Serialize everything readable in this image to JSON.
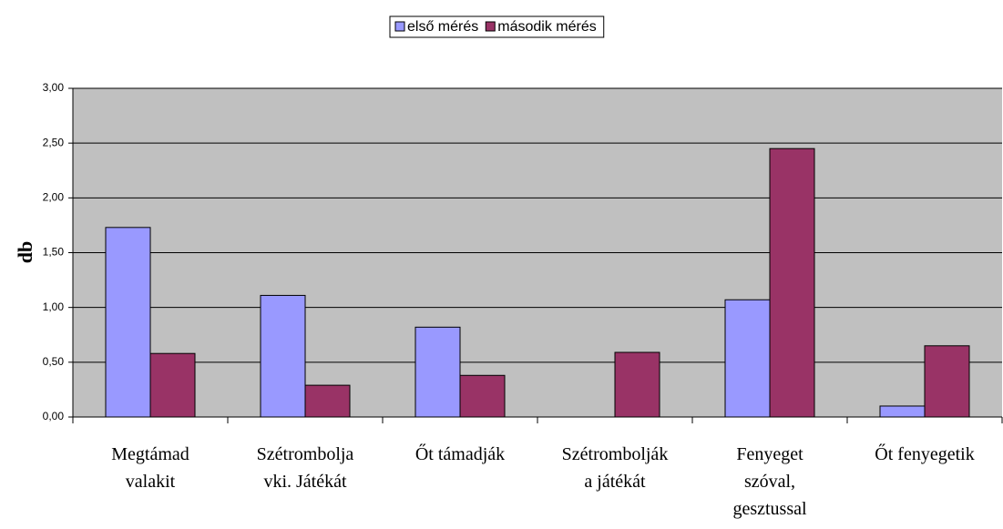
{
  "chart_data": {
    "type": "bar",
    "y_label": "db",
    "categories": [
      "Megtámad\nvalakit",
      "Szétrombolja\nvki. Játékát",
      "Őt támadják",
      "Szétrombolják\na játékát",
      "Fenyeget\nszóval,\ngesztussal",
      "Őt fenyegetik"
    ],
    "series": [
      {
        "name": "első mérés",
        "color": "#9999ff",
        "values": [
          1.73,
          1.11,
          0.82,
          0,
          1.07,
          0.1
        ]
      },
      {
        "name": "második mérés",
        "color": "#993366",
        "values": [
          0.58,
          0.29,
          0.38,
          0.59,
          2.45,
          0.65
        ]
      }
    ],
    "ylim": [
      0,
      3
    ],
    "yticks": [
      {
        "value": 0,
        "label": "0,00"
      },
      {
        "value": 0.5,
        "label": "0,50"
      },
      {
        "value": 1,
        "label": "1,00"
      },
      {
        "value": 1.5,
        "label": "1,50"
      },
      {
        "value": 2,
        "label": "2,00"
      },
      {
        "value": 2.5,
        "label": "2,50"
      },
      {
        "value": 3,
        "label": "3,00"
      }
    ],
    "grid": true,
    "legend": "top"
  }
}
